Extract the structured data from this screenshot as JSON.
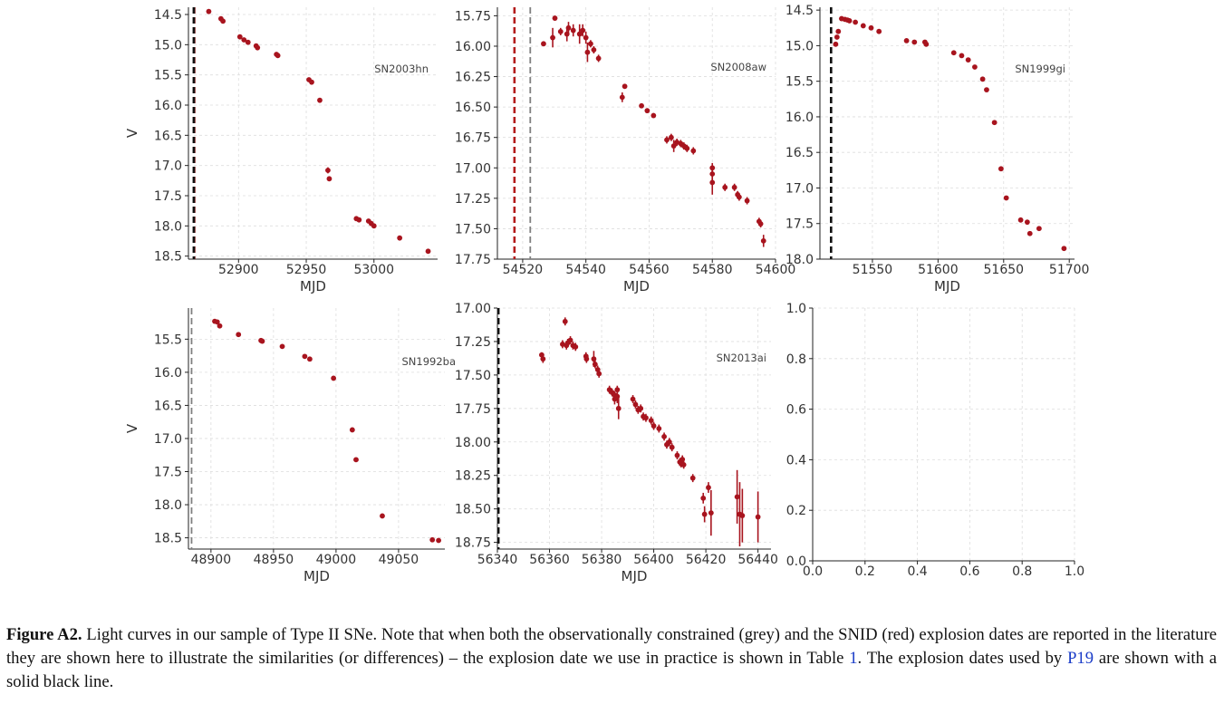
{
  "colors": {
    "data": "#a8141e",
    "red_line": "#b31b1b",
    "grey_line": "#808080",
    "black_line": "#111111",
    "grid": "#dddddd"
  },
  "chart_data": [
    {
      "type": "scatter",
      "name": "SN2003hn",
      "xlabel": "MJD",
      "ylabel": "V",
      "inverted_y": true,
      "grid": true,
      "xlim": [
        52863,
        53047
      ],
      "ylim": [
        18.55,
        14.38
      ],
      "xticks": [
        52900,
        52950,
        53000
      ],
      "xtick_labels": [
        "52900",
        "52950",
        "53000"
      ],
      "yticks": [
        14.5,
        15.0,
        15.5,
        16.0,
        16.5,
        17.0,
        17.5,
        18.0,
        18.5
      ],
      "ytick_labels": [
        "14.5",
        "15.0",
        "15.5",
        "16.0",
        "16.5",
        "17.0",
        "17.5",
        "18.0",
        "18.5"
      ],
      "vlines": [
        {
          "x": 52866.6,
          "style": "grey"
        },
        {
          "x": 52867.3,
          "style": "red"
        },
        {
          "x": 52867.0,
          "style": "black"
        }
      ],
      "points": [
        [
          52878,
          14.45,
          0.03
        ],
        [
          52887,
          14.57,
          0.03
        ],
        [
          52888.5,
          14.61,
          0.03
        ],
        [
          52901,
          14.87,
          0.03
        ],
        [
          52904,
          14.92,
          0.03
        ],
        [
          52907,
          14.96,
          0.03
        ],
        [
          52913,
          15.02,
          0.03
        ],
        [
          52914,
          15.05,
          0.03
        ],
        [
          52928,
          15.16,
          0.03
        ],
        [
          52929,
          15.18,
          0.03
        ],
        [
          52952,
          15.58,
          0.03
        ],
        [
          52954,
          15.62,
          0.03
        ],
        [
          52960,
          15.92,
          0.03
        ],
        [
          52966,
          17.08,
          0.05
        ],
        [
          52967,
          17.22,
          0.04
        ],
        [
          52987,
          17.88,
          0.03
        ],
        [
          52989,
          17.9,
          0.03
        ],
        [
          52996,
          17.92,
          0.03
        ],
        [
          52998,
          17.96,
          0.03
        ],
        [
          53000,
          18.0,
          0.03
        ],
        [
          53019,
          18.2,
          0.03
        ],
        [
          53040,
          18.42,
          0.03
        ]
      ]
    },
    {
      "type": "scatter",
      "name": "SN2008aw",
      "xlabel": "MJD",
      "ylabel": "",
      "inverted_y": true,
      "grid": true,
      "xlim": [
        54512,
        54600
      ],
      "ylim": [
        17.75,
        15.68
      ],
      "xticks": [
        54520,
        54540,
        54560,
        54580,
        54600
      ],
      "xtick_labels": [
        "54520",
        "54540",
        "54560",
        "54580",
        "54600"
      ],
      "yticks": [
        15.75,
        16.0,
        16.25,
        16.5,
        16.75,
        17.0,
        17.25,
        17.5,
        17.75
      ],
      "ytick_labels": [
        "15.75",
        "16.00",
        "16.25",
        "16.50",
        "16.75",
        "17.00",
        "17.25",
        "17.50",
        "17.75"
      ],
      "vlines": [
        {
          "x": 54517.4,
          "style": "red"
        },
        {
          "x": 54522.4,
          "style": "grey"
        }
      ],
      "points": [
        [
          54526.6,
          15.98,
          0.02
        ],
        [
          54529.5,
          15.93,
          0.08
        ],
        [
          54530.2,
          15.77,
          0.02
        ],
        [
          54532,
          15.88,
          0.03
        ],
        [
          54534,
          15.9,
          0.06
        ],
        [
          54534.5,
          15.85,
          0.05
        ],
        [
          54536,
          15.87,
          0.05
        ],
        [
          54538,
          15.9,
          0.08
        ],
        [
          54539,
          15.87,
          0.05
        ],
        [
          54540,
          15.93,
          0.05
        ],
        [
          54540.5,
          16.05,
          0.08
        ],
        [
          54541.5,
          15.98,
          0.03
        ],
        [
          54542.5,
          16.03,
          0.03
        ],
        [
          54544,
          16.1,
          0.03
        ],
        [
          54551.5,
          16.42,
          0.04
        ],
        [
          54552.3,
          16.33,
          0.02
        ],
        [
          54557.6,
          16.49,
          0.02
        ],
        [
          54559.4,
          16.53,
          0.02
        ],
        [
          54561.4,
          16.57,
          0.02
        ],
        [
          54565.6,
          16.77,
          0.03
        ],
        [
          54567,
          16.75,
          0.03
        ],
        [
          54567.8,
          16.82,
          0.05
        ],
        [
          54568.8,
          16.79,
          0.03
        ],
        [
          54570,
          16.8,
          0.03
        ],
        [
          54571,
          16.82,
          0.03
        ],
        [
          54572,
          16.84,
          0.03
        ],
        [
          54574,
          16.86,
          0.03
        ],
        [
          54580,
          17.0,
          0.04
        ],
        [
          54580,
          17.05,
          0.06
        ],
        [
          54580,
          17.12,
          0.1
        ],
        [
          54584,
          17.16,
          0.03
        ],
        [
          54587,
          17.16,
          0.03
        ],
        [
          54588,
          17.22,
          0.03
        ],
        [
          54588.5,
          17.24,
          0.03
        ],
        [
          54591,
          17.27,
          0.03
        ],
        [
          54594.8,
          17.44,
          0.03
        ],
        [
          54595.3,
          17.46,
          0.03
        ],
        [
          54596.2,
          17.6,
          0.05
        ]
      ]
    },
    {
      "type": "scatter",
      "name": "SN1999gi",
      "xlabel": "MJD",
      "ylabel": "",
      "inverted_y": true,
      "grid": true,
      "xlim": [
        51510,
        51704
      ],
      "ylim": [
        18.0,
        14.46
      ],
      "xticks": [
        51550,
        51600,
        51650,
        51700
      ],
      "xtick_labels": [
        "51550",
        "51600",
        "51650",
        "51700"
      ],
      "yticks": [
        14.5,
        15.0,
        15.5,
        16.0,
        16.5,
        17.0,
        17.5,
        18.0
      ],
      "ytick_labels": [
        "14.5",
        "15.0",
        "15.5",
        "16.0",
        "16.5",
        "17.0",
        "17.5",
        "18.0"
      ],
      "vlines": [
        {
          "x": 51518.3,
          "style": "grey"
        },
        {
          "x": 51518.5,
          "style": "black"
        }
      ],
      "points": [
        [
          51522,
          14.98,
          0.02
        ],
        [
          51523,
          14.88,
          0.02
        ],
        [
          51524,
          14.8,
          0.02
        ],
        [
          51526.5,
          14.62,
          0.02
        ],
        [
          51529,
          14.63,
          0.02
        ],
        [
          51531,
          14.64,
          0.02
        ],
        [
          51532.5,
          14.65,
          0.02
        ],
        [
          51537,
          14.67,
          0.02
        ],
        [
          51543,
          14.72,
          0.02
        ],
        [
          51549,
          14.75,
          0.02
        ],
        [
          51555,
          14.8,
          0.02
        ],
        [
          51576,
          14.93,
          0.02
        ],
        [
          51582,
          14.95,
          0.02
        ],
        [
          51590,
          14.95,
          0.02
        ],
        [
          51591,
          14.98,
          0.02
        ],
        [
          51612,
          15.1,
          0.02
        ],
        [
          51618,
          15.14,
          0.02
        ],
        [
          51623,
          15.2,
          0.02
        ],
        [
          51628,
          15.3,
          0.02
        ],
        [
          51634,
          15.47,
          0.02
        ],
        [
          51637,
          15.62,
          0.02
        ],
        [
          51643,
          16.08,
          0.02
        ],
        [
          51648,
          16.73,
          0.02
        ],
        [
          51652,
          17.14,
          0.02
        ],
        [
          51663,
          17.45,
          0.02
        ],
        [
          51668,
          17.48,
          0.02
        ],
        [
          51670,
          17.64,
          0.02
        ],
        [
          51677,
          17.57,
          0.02
        ],
        [
          51696,
          17.85,
          0.02
        ]
      ]
    },
    {
      "type": "scatter",
      "name": "SN1992ba",
      "xlabel": "MJD",
      "ylabel": "V",
      "inverted_y": true,
      "grid": true,
      "xlim": [
        48882,
        49087
      ],
      "ylim": [
        18.67,
        15.03
      ],
      "xticks": [
        48900,
        48950,
        49000,
        49050
      ],
      "xtick_labels": [
        "48900",
        "48950",
        "49000",
        "49050"
      ],
      "yticks": [
        15.5,
        16.0,
        16.5,
        17.0,
        17.5,
        18.0,
        18.5
      ],
      "ytick_labels": [
        "15.5",
        "16.0",
        "16.5",
        "17.0",
        "17.5",
        "18.0",
        "18.5"
      ],
      "vlines": [
        {
          "x": 48884.5,
          "style": "grey"
        }
      ],
      "points": [
        [
          48903,
          15.23,
          0.03
        ],
        [
          48905,
          15.24,
          0.03
        ],
        [
          48907,
          15.3,
          0.03
        ],
        [
          48922,
          15.43,
          0.03
        ],
        [
          48940,
          15.52,
          0.03
        ],
        [
          48941,
          15.53,
          0.03
        ],
        [
          48957,
          15.61,
          0.03
        ],
        [
          48975,
          15.76,
          0.03
        ],
        [
          48979,
          15.8,
          0.03
        ],
        [
          48998,
          16.09,
          0.03
        ],
        [
          49013,
          16.87,
          0.03
        ],
        [
          49016,
          17.32,
          0.03
        ],
        [
          49037,
          18.17,
          0.03
        ],
        [
          49077,
          18.53,
          0.03
        ],
        [
          49082,
          18.54,
          0.03
        ]
      ]
    },
    {
      "type": "scatter",
      "name": "SN2013ai",
      "xlabel": "MJD",
      "ylabel": "",
      "inverted_y": true,
      "grid": true,
      "xlim": [
        56340,
        56445
      ],
      "ylim": [
        18.8,
        17.0
      ],
      "xticks": [
        56340,
        56360,
        56380,
        56400,
        56420,
        56440
      ],
      "xtick_labels": [
        "56340",
        "56360",
        "56380",
        "56400",
        "56420",
        "56440"
      ],
      "yticks": [
        17.0,
        17.25,
        17.5,
        17.75,
        18.0,
        18.25,
        18.5,
        18.75
      ],
      "ytick_labels": [
        "17.00",
        "17.25",
        "17.50",
        "17.75",
        "18.00",
        "18.25",
        "18.50",
        "18.75"
      ],
      "vlines": [
        {
          "x": 56340.2,
          "style": "grey"
        },
        {
          "x": 56340.4,
          "style": "black"
        }
      ],
      "points": [
        [
          56357,
          17.35,
          0.02
        ],
        [
          56357.5,
          17.38,
          0.03
        ],
        [
          56365,
          17.27,
          0.03
        ],
        [
          56366,
          17.1,
          0.03
        ],
        [
          56366.5,
          17.28,
          0.03
        ],
        [
          56367,
          17.26,
          0.03
        ],
        [
          56368,
          17.24,
          0.03
        ],
        [
          56369,
          17.28,
          0.03
        ],
        [
          56370,
          17.29,
          0.03
        ],
        [
          56374,
          17.36,
          0.03
        ],
        [
          56374.2,
          17.38,
          0.03
        ],
        [
          56377,
          17.38,
          0.06
        ],
        [
          56377.5,
          17.42,
          0.03
        ],
        [
          56378.5,
          17.46,
          0.03
        ],
        [
          56379,
          17.49,
          0.03
        ],
        [
          56383,
          17.61,
          0.03
        ],
        [
          56384,
          17.63,
          0.03
        ],
        [
          56385,
          17.65,
          0.03
        ],
        [
          56385,
          17.68,
          0.04
        ],
        [
          56386,
          17.66,
          0.05
        ],
        [
          56386.5,
          17.75,
          0.08
        ],
        [
          56386,
          17.61,
          0.03
        ],
        [
          56392,
          17.68,
          0.03
        ],
        [
          56393,
          17.72,
          0.03
        ],
        [
          56394,
          17.76,
          0.03
        ],
        [
          56395,
          17.75,
          0.03
        ],
        [
          56396,
          17.81,
          0.03
        ],
        [
          56397,
          17.82,
          0.03
        ],
        [
          56399,
          17.84,
          0.03
        ],
        [
          56400,
          17.88,
          0.03
        ],
        [
          56402,
          17.9,
          0.03
        ],
        [
          56404,
          17.96,
          0.03
        ],
        [
          56405,
          18.02,
          0.03
        ],
        [
          56406,
          18.0,
          0.03
        ],
        [
          56407,
          18.04,
          0.03
        ],
        [
          56409,
          18.1,
          0.03
        ],
        [
          56410,
          18.15,
          0.03
        ],
        [
          56410.5,
          18.16,
          0.03
        ],
        [
          56411,
          18.13,
          0.03
        ],
        [
          56411.5,
          18.17,
          0.03
        ],
        [
          56415,
          18.27,
          0.03
        ],
        [
          56419,
          18.42,
          0.04
        ],
        [
          56419.5,
          18.54,
          0.06
        ],
        [
          56421,
          18.34,
          0.04
        ],
        [
          56422,
          18.53,
          0.17
        ],
        [
          56432,
          18.41,
          0.2
        ],
        [
          56433,
          18.54,
          0.24
        ],
        [
          56434,
          18.55,
          0.2
        ],
        [
          56440,
          18.56,
          0.19
        ]
      ]
    },
    {
      "type": "scatter",
      "name": "",
      "xlabel": "",
      "ylabel": "",
      "grid": true,
      "xlim": [
        0,
        1
      ],
      "ylim": [
        0,
        1
      ],
      "xticks": [
        0,
        0.2,
        0.4,
        0.6,
        0.8,
        1.0
      ],
      "xtick_labels": [
        "0.0",
        "0.2",
        "0.4",
        "0.6",
        "0.8",
        "1.0"
      ],
      "yticks": [
        0,
        0.2,
        0.4,
        0.6,
        0.8,
        1.0
      ],
      "ytick_labels": [
        "0.0",
        "0.2",
        "0.4",
        "0.6",
        "0.8",
        "1.0"
      ],
      "vlines": [],
      "points": []
    }
  ],
  "caption": {
    "label": "Figure A2.",
    "text1": " Light curves in our sample of Type II SNe. Note that when both the observationally constrained (grey) and the ",
    "snid": "SNID",
    "text2": " (red) explosion dates are reported in the literature they are shown here to illustrate the similarities (or differences) – the explosion date we use in practice is shown in Table ",
    "table_ref": "1",
    "text3": ". The explosion dates used by ",
    "p19_ref": "P19",
    "text4": " are shown with a solid black line."
  }
}
